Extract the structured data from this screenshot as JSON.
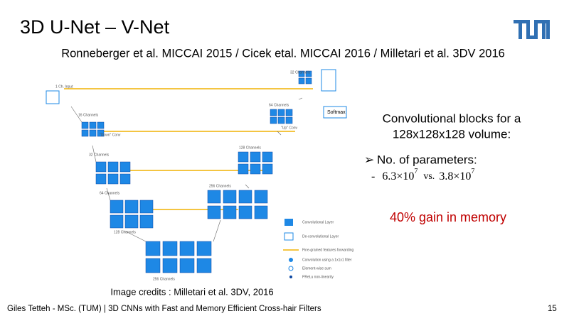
{
  "title": "3D U-Net – V-Net",
  "subtitle": "Ronneberger et al. MICCAI 2015 / Cicek etal. MICCAI 2016 / Milletari et al. 3DV 2016",
  "diagram": {
    "labels": [
      "1 Ch. Input",
      "16 Channels",
      "32 Channels",
      "64 Channels",
      "128 Channels",
      "256 Channels",
      "\"Down\" Conv",
      "\"Up\" Conv",
      "Softmax",
      "32 Channels",
      "64 Channels",
      "128 Channels",
      "256 Channels"
    ],
    "legend": [
      "Convolutional Layer",
      "De-convolutional Layer",
      "Fine-grained features forwarding",
      "Convolution using a 1x1x1 filter",
      "Element-wise sum",
      "PReLu non-linearity"
    ]
  },
  "body": {
    "lines": [
      "Convolutional blocks for a",
      "128x128x128 volume:"
    ],
    "bullet": "No. of parameters:",
    "formula": {
      "dash": "-",
      "a": "6.3×10",
      "a_exp": "7",
      "vs": "vs.",
      "b": "3.8×10",
      "b_exp": "7"
    },
    "highlight": "40% gain in memory"
  },
  "credits": "Image credits : Milletari et al. 3DV, 2016",
  "footer": {
    "text": "Giles Tetteh - MSc. (TUM) | 3D CNNs with Fast and Memory Efficient Cross-hair Filters",
    "page": "15"
  }
}
